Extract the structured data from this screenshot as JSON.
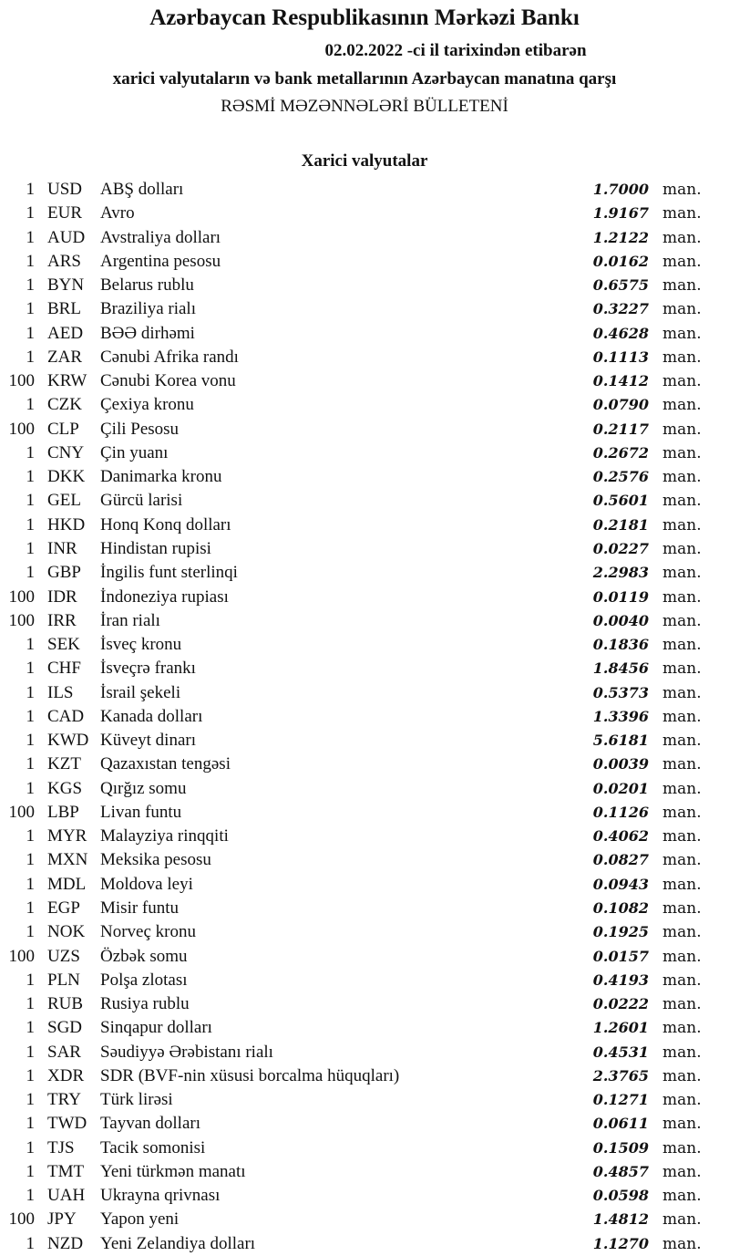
{
  "header": {
    "title": "Azərbaycan Respublikasının Mərkəzi Bankı",
    "date_line": "02.02.2022 -ci il tarixindən etibarən",
    "subtitle": "xarici valyutaların və bank metallarının Azərbaycan manatına qarşı",
    "bulletin": "RƏSMİ MƏZƏNNƏLƏRİ BÜLLETENİ",
    "section": "Xarici valyutalar"
  },
  "unit": "man.",
  "rows": [
    {
      "qty": "1",
      "code": "USD",
      "name": "ABŞ dolları",
      "rate": "1.7000"
    },
    {
      "qty": "1",
      "code": "EUR",
      "name": "Avro",
      "rate": "1.9167"
    },
    {
      "qty": "1",
      "code": "AUD",
      "name": "Avstraliya dolları",
      "rate": "1.2122"
    },
    {
      "qty": "1",
      "code": "ARS",
      "name": "Argentina pesosu",
      "rate": "0.0162"
    },
    {
      "qty": "1",
      "code": "BYN",
      "name": "Belarus rublu",
      "rate": "0.6575"
    },
    {
      "qty": "1",
      "code": "BRL",
      "name": "Braziliya rialı",
      "rate": "0.3227"
    },
    {
      "qty": "1",
      "code": "AED",
      "name": "BƏƏ dirhəmi",
      "rate": "0.4628"
    },
    {
      "qty": "1",
      "code": "ZAR",
      "name": "Cənubi Afrika randı",
      "rate": "0.1113"
    },
    {
      "qty": "100",
      "code": "KRW",
      "name": "Cənubi Korea vonu",
      "rate": "0.1412"
    },
    {
      "qty": "1",
      "code": "CZK",
      "name": "Çexiya kronu",
      "rate": "0.0790"
    },
    {
      "qty": "100",
      "code": "CLP",
      "name": "Çili Pesosu",
      "rate": "0.2117"
    },
    {
      "qty": "1",
      "code": "CNY",
      "name": "Çin yuanı",
      "rate": "0.2672"
    },
    {
      "qty": "1",
      "code": "DKK",
      "name": "Danimarka kronu",
      "rate": "0.2576"
    },
    {
      "qty": "1",
      "code": "GEL",
      "name": "Gürcü larisi",
      "rate": "0.5601"
    },
    {
      "qty": "1",
      "code": "HKD",
      "name": "Honq Konq dolları",
      "rate": "0.2181"
    },
    {
      "qty": "1",
      "code": "INR",
      "name": "Hindistan rupisi",
      "rate": "0.0227"
    },
    {
      "qty": "1",
      "code": "GBP",
      "name": "İngilis funt sterlinqi",
      "rate": "2.2983"
    },
    {
      "qty": "100",
      "code": "IDR",
      "name": "İndoneziya rupiası",
      "rate": "0.0119"
    },
    {
      "qty": "100",
      "code": "IRR",
      "name": "İran rialı",
      "rate": "0.0040"
    },
    {
      "qty": "1",
      "code": "SEK",
      "name": "İsveç kronu",
      "rate": "0.1836"
    },
    {
      "qty": "1",
      "code": "CHF",
      "name": "İsveçrə frankı",
      "rate": "1.8456"
    },
    {
      "qty": "1",
      "code": "ILS",
      "name": "İsrail şekeli",
      "rate": "0.5373"
    },
    {
      "qty": "1",
      "code": "CAD",
      "name": "Kanada dolları",
      "rate": "1.3396"
    },
    {
      "qty": "1",
      "code": "KWD",
      "name": "Küveyt dinarı",
      "rate": "5.6181"
    },
    {
      "qty": "1",
      "code": "KZT",
      "name": "Qazaxıstan tengəsi",
      "rate": "0.0039"
    },
    {
      "qty": "1",
      "code": "KGS",
      "name": "Qırğız somu",
      "rate": "0.0201"
    },
    {
      "qty": "100",
      "code": "LBP",
      "name": "Livan funtu",
      "rate": "0.1126"
    },
    {
      "qty": "1",
      "code": "MYR",
      "name": "Malayziya rinqqiti",
      "rate": "0.4062"
    },
    {
      "qty": "1",
      "code": "MXN",
      "name": "Meksika pesosu",
      "rate": "0.0827"
    },
    {
      "qty": "1",
      "code": "MDL",
      "name": "Moldova leyi",
      "rate": "0.0943"
    },
    {
      "qty": "1",
      "code": "EGP",
      "name": "Misir funtu",
      "rate": "0.1082"
    },
    {
      "qty": "1",
      "code": "NOK",
      "name": "Norveç kronu",
      "rate": "0.1925"
    },
    {
      "qty": "100",
      "code": "UZS",
      "name": "Özbək somu",
      "rate": "0.0157"
    },
    {
      "qty": "1",
      "code": "PLN",
      "name": "Polşa zlotası",
      "rate": "0.4193"
    },
    {
      "qty": "1",
      "code": "RUB",
      "name": "Rusiya rublu",
      "rate": "0.0222"
    },
    {
      "qty": "1",
      "code": "SGD",
      "name": "Sinqapur dolları",
      "rate": "1.2601"
    },
    {
      "qty": "1",
      "code": "SAR",
      "name": "Səudiyyə Ərəbistanı rialı",
      "rate": "0.4531"
    },
    {
      "qty": "1",
      "code": "XDR",
      "name": "SDR (BVF-nin xüsusi borcalma hüquqları)",
      "rate": "2.3765"
    },
    {
      "qty": "1",
      "code": "TRY",
      "name": "Türk lirəsi",
      "rate": "0.1271"
    },
    {
      "qty": "1",
      "code": "TWD",
      "name": "Tayvan dolları",
      "rate": "0.0611"
    },
    {
      "qty": "1",
      "code": "TJS",
      "name": "Tacik somonisi",
      "rate": "0.1509"
    },
    {
      "qty": "1",
      "code": "TMT",
      "name": "Yeni türkmən manatı",
      "rate": "0.4857"
    },
    {
      "qty": "1",
      "code": "UAH",
      "name": "Ukrayna qrivnası",
      "rate": "0.0598"
    },
    {
      "qty": "100",
      "code": "JPY",
      "name": "Yapon yeni",
      "rate": "1.4812"
    },
    {
      "qty": "1",
      "code": "NZD",
      "name": "Yeni Zelandiya dolları",
      "rate": "1.1270"
    }
  ]
}
